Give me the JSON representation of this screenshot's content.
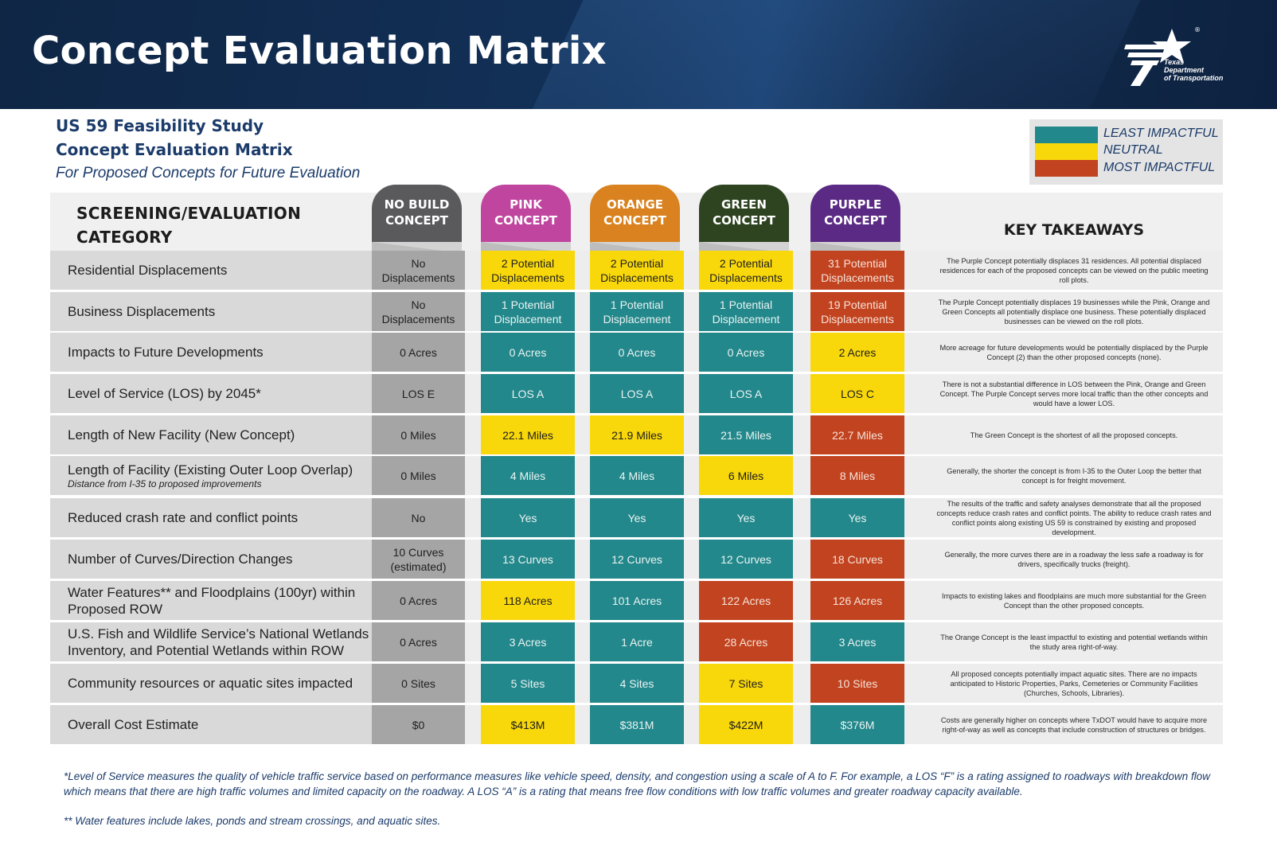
{
  "header": {
    "title": "Concept Evaluation Matrix"
  },
  "logo": {
    "line1": "Texas",
    "line2": "Department",
    "line3": "of Transportation",
    "registered": "®"
  },
  "subtitle": {
    "study": "US 59 Feasibility Study",
    "matrix": "Concept Evaluation Matrix",
    "note": "For Proposed Concepts for Future Evaluation"
  },
  "legend": [
    {
      "label": "LEAST IMPACTFUL",
      "color": "#23888b"
    },
    {
      "label": "NEUTRAL",
      "color": "#f9d80b"
    },
    {
      "label": "MOST IMPACTFUL",
      "color": "#c2431f"
    }
  ],
  "table": {
    "category_header_line1": "SCREENING/EVALUATION",
    "category_header_line2": "CATEGORY",
    "takeaways_header": "KEY TAKEAWAYS",
    "concepts": [
      {
        "line1": "NO BUILD",
        "line2": "CONCEPT",
        "color": "#5a5a5c"
      },
      {
        "line1": "PINK",
        "line2": "CONCEPT",
        "color": "#c0459e"
      },
      {
        "line1": "ORANGE",
        "line2": "CONCEPT",
        "color": "#d9821f"
      },
      {
        "line1": "GREEN",
        "line2": "CONCEPT",
        "color": "#2e4420"
      },
      {
        "line1": "PURPLE",
        "line2": "CONCEPT",
        "color": "#5a2a84"
      }
    ],
    "rows": [
      {
        "category": "Residential Displacements",
        "note": "",
        "values": [
          "No Displacements",
          "2 Potential Displacements",
          "2 Potential Displacements",
          "2 Potential Displacements",
          "31 Potential Displacements"
        ],
        "ratings": [
          "nb",
          "yellow",
          "yellow",
          "yellow",
          "red"
        ],
        "takeaway": "The Purple Concept potentially displaces 31 residences. All potential displaced residences for each of the proposed concepts can be viewed on the public meeting roll plots."
      },
      {
        "category": "Business Displacements",
        "note": "",
        "values": [
          "No Displacements",
          "1 Potential Displacement",
          "1 Potential Displacement",
          "1 Potential Displacement",
          "19 Potential Displacements"
        ],
        "ratings": [
          "nb",
          "teal",
          "teal",
          "teal",
          "red"
        ],
        "takeaway": "The Purple Concept potentially displaces 19 businesses while the Pink, Orange and Green Concepts all potentially displace one business. These potentially displaced businesses can be viewed on the roll plots."
      },
      {
        "category": "Impacts to Future Developments",
        "note": "",
        "values": [
          "0 Acres",
          "0 Acres",
          "0 Acres",
          "0 Acres",
          "2 Acres"
        ],
        "ratings": [
          "nb",
          "teal",
          "teal",
          "teal",
          "yellow"
        ],
        "takeaway": "More acreage for future developments would be potentially displaced by the Purple Concept (2) than the other proposed concepts (none)."
      },
      {
        "category": "Level of Service (LOS) by 2045*",
        "note": "",
        "values": [
          "LOS E",
          "LOS A",
          "LOS A",
          "LOS A",
          "LOS C"
        ],
        "ratings": [
          "nb",
          "teal",
          "teal",
          "teal",
          "yellow"
        ],
        "takeaway": "There is not a substantial difference in LOS between the Pink, Orange and Green Concept. The Purple Concept serves more local traffic than the other concepts and would have a lower LOS."
      },
      {
        "category": "Length of New Facility (New Concept)",
        "note": "",
        "values": [
          "0 Miles",
          "22.1 Miles",
          "21.9 Miles",
          "21.5 Miles",
          "22.7 Miles"
        ],
        "ratings": [
          "nb",
          "yellow",
          "yellow",
          "teal",
          "red"
        ],
        "takeaway": "The Green Concept is the shortest of all the proposed concepts."
      },
      {
        "category": "Length of Facility (Existing Outer Loop Overlap)",
        "note": "Distance from I-35 to proposed improvements",
        "values": [
          "0 Miles",
          "4 Miles",
          "4 Miles",
          "6 Miles",
          "8 Miles"
        ],
        "ratings": [
          "nb",
          "teal",
          "teal",
          "yellow",
          "red"
        ],
        "takeaway": "Generally, the shorter the concept is from I-35 to the Outer Loop the better that concept is for freight movement."
      },
      {
        "category": "Reduced crash rate and conflict points",
        "note": "",
        "values": [
          "No",
          "Yes",
          "Yes",
          "Yes",
          "Yes"
        ],
        "ratings": [
          "nb",
          "teal",
          "teal",
          "teal",
          "teal"
        ],
        "takeaway": "The results of the traffic and safety analyses demonstrate that all the proposed concepts reduce crash rates and conflict points. The ability to reduce crash rates and conflict points along existing US 59 is constrained by existing and proposed development."
      },
      {
        "category": "Number of Curves/Direction Changes",
        "note": "",
        "values": [
          "10 Curves (estimated)",
          "13 Curves",
          "12 Curves",
          "12 Curves",
          "18 Curves"
        ],
        "ratings": [
          "nb",
          "teal",
          "teal",
          "teal",
          "red"
        ],
        "takeaway": "Generally, the more curves there are in a roadway the less safe a roadway is for drivers, specifically trucks (freight)."
      },
      {
        "category": "Water Features** and Floodplains (100yr) within Proposed ROW",
        "note": "",
        "values": [
          "0 Acres",
          "118 Acres",
          "101 Acres",
          "122 Acres",
          "126 Acres"
        ],
        "ratings": [
          "nb",
          "yellow",
          "teal",
          "red",
          "red"
        ],
        "takeaway": "Impacts to existing lakes and floodplains are much more substantial for the Green Concept than the other proposed concepts."
      },
      {
        "category": "U.S. Fish and Wildlife Service’s National Wetlands Inventory, and Potential Wetlands within ROW",
        "note": "",
        "values": [
          "0 Acres",
          "3 Acres",
          "1 Acre",
          "28 Acres",
          "3 Acres"
        ],
        "ratings": [
          "nb",
          "teal",
          "teal",
          "red",
          "teal"
        ],
        "takeaway": "The Orange Concept is the least impactful to existing and potential wetlands within the study area right-of-way."
      },
      {
        "category": "Community resources or aquatic sites impacted",
        "note": "",
        "values": [
          "0 Sites",
          "5 Sites",
          "4 Sites",
          "7 Sites",
          "10 Sites"
        ],
        "ratings": [
          "nb",
          "teal",
          "teal",
          "yellow",
          "red"
        ],
        "takeaway": "All proposed concepts potentially impact aquatic sites. There are no impacts anticipated to Historic Properties, Parks, Cemeteries or Community Facilities (Churches, Schools, Libraries)."
      },
      {
        "category": "Overall Cost Estimate",
        "note": "",
        "values": [
          "$0",
          "$413M",
          "$381M",
          "$422M",
          "$376M"
        ],
        "ratings": [
          "nb",
          "yellow",
          "teal",
          "yellow",
          "teal"
        ],
        "takeaway": "Costs are generally higher on concepts where TxDOT would have to acquire more right-of-way as well as concepts that include construction of structures or bridges."
      }
    ]
  },
  "footnotes": {
    "los": "*Level of Service measures the quality of vehicle traffic service based on performance measures like vehicle speed, density, and congestion using a scale of A to F. For example, a LOS “F” is a rating assigned to roadways with breakdown flow which means that there are high traffic volumes and limited capacity on the roadway. A LOS “A” is a rating that means free flow conditions with low traffic volumes and greater roadway capacity available.",
    "water": "** Water features include lakes, ponds and stream crossings, and aquatic sites."
  }
}
